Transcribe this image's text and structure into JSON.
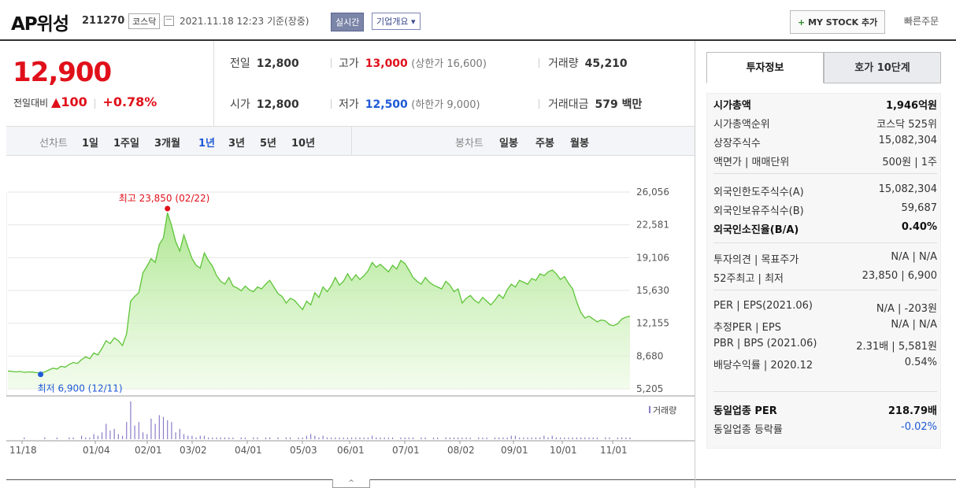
{
  "header": {
    "name": "AP위성",
    "code": "211270",
    "market": "코스닥",
    "datetime": "2021.11.18 12:23",
    "basis": "기준(장중)",
    "realtime_label": "실시간",
    "corp_label": "기업개요 ▾",
    "mystock_plus": "+",
    "mystock_label": "MY STOCK 추가",
    "quick_order": "빠른주문"
  },
  "price": {
    "current": "12,900",
    "change_label": "전일대비",
    "change_arrow": "▲",
    "change_amt": "100",
    "change_pct": "+0.78%"
  },
  "stats": {
    "prev_label": "전일",
    "prev": "12,800",
    "high_label": "고가",
    "high": "13,000",
    "upper": "(상한가 16,600)",
    "volume_label": "거래량",
    "volume": "45,210",
    "open_label": "시가",
    "open": "12,800",
    "low_label": "저가",
    "low": "12,500",
    "lower": "(하한가 9,000)",
    "amount_label": "거래대금",
    "amount": "579 백만"
  },
  "periods": {
    "line_label": "선차트",
    "items": [
      "1일",
      "1주일",
      "3개월",
      "1년",
      "3년",
      "5년",
      "10년"
    ],
    "selected": "1년",
    "candle_label": "봉차트",
    "candles": [
      "일봉",
      "주봉",
      "월봉"
    ]
  },
  "chart_data": {
    "type": "area",
    "ylim": [
      5205,
      26056
    ],
    "yticks": [
      "26,056",
      "22,581",
      "19,106",
      "15,630",
      "12,155",
      "8,680",
      "5,205"
    ],
    "xticks": [
      "11/18",
      "01/04",
      "02/01",
      "03/02",
      "04/01",
      "05/03",
      "06/01",
      "07/01",
      "08/02",
      "09/01",
      "10/01",
      "11/01"
    ],
    "high_label": "최고 23,850 (02/22)",
    "low_label": "최저 6,900 (12/11)",
    "volume_label": "거래량",
    "series": [
      {
        "values": [
          7100,
          7050,
          7000,
          7050,
          6950,
          7000,
          6980,
          6920,
          6900,
          7000,
          7200,
          7400,
          7300,
          7600,
          7500,
          7800,
          8000,
          7900,
          8300,
          8600,
          8400,
          9000,
          8800,
          9500,
          10300,
          10000,
          10600,
          10300,
          9800,
          11000,
          14500,
          15000,
          15400,
          17500,
          18200,
          19000,
          18600,
          20500,
          21200,
          23850,
          22500,
          20800,
          19800,
          21500,
          20200,
          19000,
          18300,
          18000,
          19600,
          18800,
          18200,
          17200,
          16600,
          16300,
          17000,
          16100,
          15900,
          15600,
          16100,
          15700,
          15500,
          16000,
          15800,
          16300,
          16700,
          16000,
          15300,
          15000,
          14300,
          14800,
          14600,
          14100,
          13600,
          14500,
          14100,
          15400,
          14900,
          16000,
          15500,
          16100,
          17000,
          16200,
          16600,
          17400,
          16700,
          17300,
          16800,
          17200,
          17700,
          18600,
          18100,
          18400,
          18000,
          17600,
          18300,
          17900,
          18800,
          18500,
          17800,
          17000,
          16600,
          16300,
          17000,
          16500,
          16200,
          16000,
          15800,
          16600,
          16200,
          15500,
          15800,
          14300,
          14800,
          15100,
          14600,
          14300,
          14900,
          14500,
          14100,
          14600,
          15200,
          14800,
          15700,
          16300,
          16000,
          16700,
          16500,
          16300,
          16900,
          16700,
          17400,
          17200,
          17600,
          17800,
          17400,
          16800,
          17100,
          16400,
          15800,
          14400,
          13300,
          12700,
          12900,
          12600,
          12300,
          12500,
          12400,
          12000,
          11900,
          12100,
          12600,
          12800,
          12900
        ]
      }
    ],
    "volume": [
      0,
      0,
      0,
      0,
      1,
      0,
      0,
      0,
      0,
      1,
      0,
      0,
      1,
      0,
      0,
      1,
      1,
      0,
      2,
      1,
      1,
      3,
      2,
      4,
      9,
      5,
      6,
      3,
      2,
      10,
      22,
      8,
      10,
      4,
      3,
      12,
      9,
      14,
      13,
      11,
      10,
      4,
      6,
      3,
      2,
      2,
      1,
      2,
      2,
      1,
      1,
      1,
      1,
      1,
      1,
      1,
      0,
      1,
      1,
      0,
      1,
      1,
      0,
      1,
      1,
      0,
      1,
      0,
      1,
      1,
      0,
      1,
      1,
      2,
      3,
      2,
      1,
      2,
      1,
      1,
      1,
      1,
      1,
      1,
      1,
      1,
      1,
      1,
      1,
      2,
      1,
      1,
      1,
      1,
      1,
      0,
      1,
      1,
      1,
      1,
      0,
      1,
      1,
      0,
      1,
      1,
      0,
      1,
      1,
      1,
      1,
      1,
      1,
      1,
      0,
      1,
      1,
      1,
      0,
      1,
      1,
      1,
      1,
      2,
      2,
      1,
      1,
      1,
      1,
      1,
      1,
      2,
      1,
      2,
      1,
      1,
      1,
      1,
      1,
      1,
      1,
      1,
      1,
      1,
      1,
      0,
      1,
      1,
      0,
      1,
      1,
      1,
      1
    ]
  },
  "right": {
    "tab_active": "투자정보",
    "tab_other": "호가 10단계",
    "rows": [
      {
        "k": "시가총액",
        "v": "1,946억원",
        "bold": true
      },
      {
        "k": "시가총액순위",
        "v": "코스닥 525위"
      },
      {
        "k": "상장주식수",
        "v": "15,082,304"
      },
      {
        "k": "액면가 | 매매단위",
        "v": "500원 | 1주"
      },
      {
        "k": "외국인한도주식수(A)",
        "v": "15,082,304"
      },
      {
        "k": "외국인보유주식수(B)",
        "v": "59,687"
      },
      {
        "k": "외국인소진율(B/A)",
        "v": "0.40%",
        "bold": true
      },
      {
        "k": "투자의견 | 목표주가",
        "v": "N/A | N/A"
      },
      {
        "k": "52주최고 | 최저",
        "v": "23,850 | 6,900"
      },
      {
        "k": "PER | EPS(2021.06)",
        "v": "N/A | -203원"
      },
      {
        "k": "추정PER | EPS",
        "v": "N/A | N/A"
      },
      {
        "k": "PBR | BPS (2021.06)",
        "v": "2.31배 | 5,581원"
      },
      {
        "k": "배당수익률 | 2020.12",
        "v": "0.54%"
      },
      {
        "k": "동일업종 PER",
        "v": "218.79배",
        "bold": true
      },
      {
        "k": "동일업종 등락률",
        "v": "-0.02%",
        "blue": true
      }
    ]
  }
}
